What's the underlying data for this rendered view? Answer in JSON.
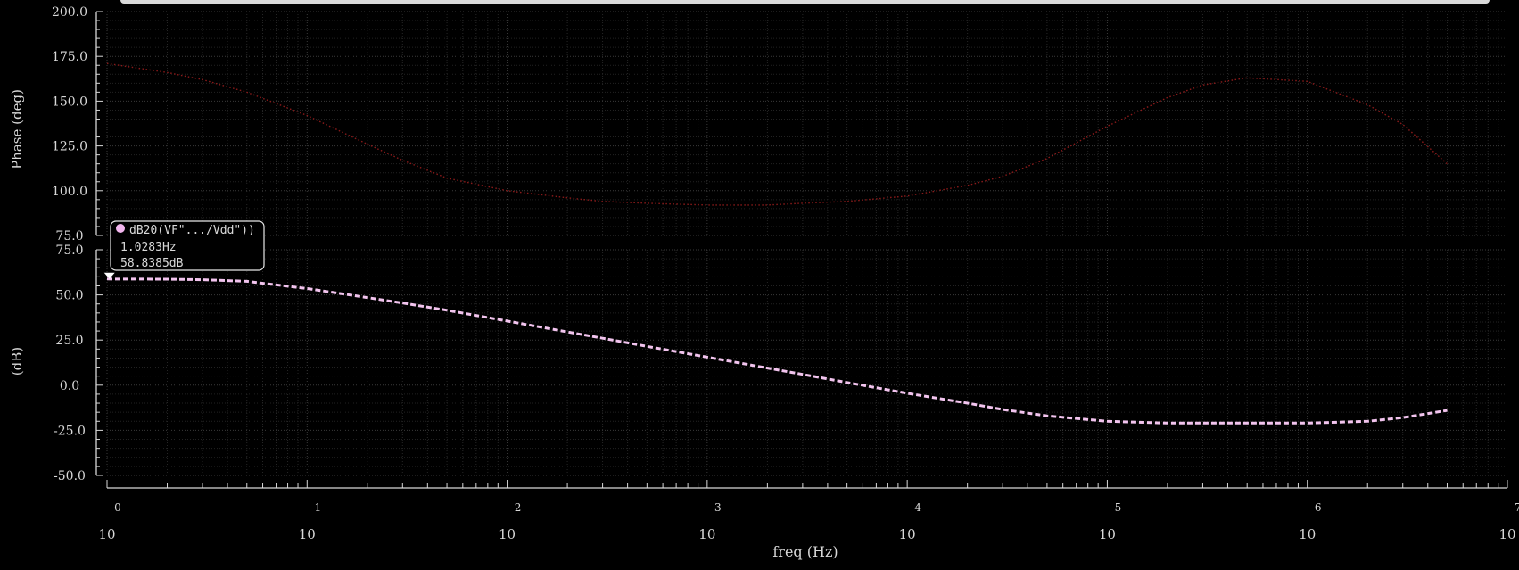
{
  "chart_data": [
    {
      "type": "line",
      "ylabel": "Phase (deg)",
      "ylim": [
        75,
        200
      ],
      "yticks": [
        "75.0",
        "100.0",
        "125.0",
        "150.0",
        "175.0",
        "200.0"
      ],
      "grid": true,
      "series": [
        {
          "color": "#8a1a1a",
          "style": "dotted",
          "x": [
            1,
            2,
            3,
            5,
            10,
            20,
            30,
            50,
            100,
            200,
            300,
            500,
            1000,
            2000,
            3000,
            5000,
            10000,
            20000,
            30000,
            50000,
            100000,
            200000,
            300000,
            500000,
            1000000,
            2000000,
            3000000,
            5000000
          ],
          "y": [
            171,
            166,
            162,
            155,
            142,
            126,
            117,
            107,
            100,
            96,
            94,
            93,
            92,
            92,
            93,
            94,
            97,
            103,
            108,
            118,
            136,
            152,
            159,
            163,
            161,
            148,
            137,
            115
          ]
        }
      ]
    },
    {
      "type": "line",
      "ylabel": "(dB)",
      "xlabel": "freq (Hz)",
      "ylim": [
        -50,
        75
      ],
      "yticks": [
        "-50.0",
        "-25.0",
        "0.0",
        "25.0",
        "50.0",
        "75.0"
      ],
      "xscale": "log",
      "xlim": [
        1,
        10000000
      ],
      "xticks": [
        {
          "base": "10",
          "exp": "0"
        },
        {
          "base": "10",
          "exp": "1"
        },
        {
          "base": "10",
          "exp": "2"
        },
        {
          "base": "10",
          "exp": "3"
        },
        {
          "base": "10",
          "exp": "4"
        },
        {
          "base": "10",
          "exp": "5"
        },
        {
          "base": "10",
          "exp": "6"
        },
        {
          "base": "10",
          "exp": "7"
        }
      ],
      "grid": true,
      "series": [
        {
          "color": "#f2c4ee",
          "style": "dashed",
          "x": [
            1,
            2,
            3,
            5,
            10,
            20,
            30,
            50,
            100,
            200,
            300,
            500,
            1000,
            2000,
            3000,
            5000,
            10000,
            20000,
            30000,
            50000,
            100000,
            200000,
            300000,
            500000,
            1000000,
            2000000,
            3000000,
            5000000
          ],
          "y": [
            58.8,
            58.7,
            58.4,
            57.5,
            53.5,
            48.5,
            45.5,
            41.5,
            35.5,
            29.5,
            26,
            21.5,
            15.5,
            9.5,
            6,
            1.5,
            -4.5,
            -10,
            -13.5,
            -17,
            -20,
            -21,
            -21,
            -21,
            -21,
            -20,
            -18,
            -14
          ]
        }
      ],
      "marker": {
        "label": "dB20(VF\".../Vdd\"))",
        "x_text": "1.0283Hz",
        "y_text": "58.8385dB",
        "x": 1.0283,
        "y": 58.8385,
        "color": "#f2b6ee"
      }
    }
  ]
}
